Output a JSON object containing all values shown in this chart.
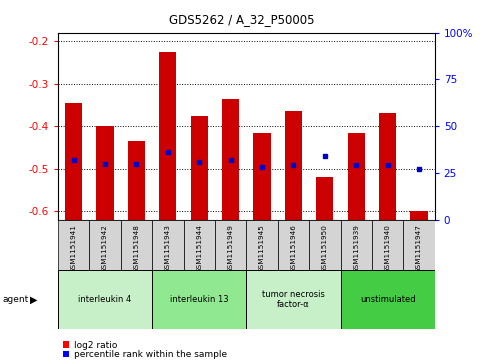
{
  "title": "GDS5262 / A_32_P50005",
  "samples": [
    "GSM1151941",
    "GSM1151942",
    "GSM1151948",
    "GSM1151943",
    "GSM1151944",
    "GSM1151949",
    "GSM1151945",
    "GSM1151946",
    "GSM1151950",
    "GSM1151939",
    "GSM1151940",
    "GSM1151947"
  ],
  "log2_ratios": [
    -0.345,
    -0.4,
    -0.435,
    -0.225,
    -0.375,
    -0.335,
    -0.415,
    -0.365,
    -0.52,
    -0.415,
    -0.37,
    -0.6
  ],
  "percentile_ranks": [
    32,
    30,
    30,
    36,
    31,
    32,
    28,
    29,
    34,
    29,
    29,
    27
  ],
  "groups": [
    {
      "label": "interleukin 4",
      "start": 0,
      "end": 3,
      "color": "#c8f0c8"
    },
    {
      "label": "interleukin 13",
      "start": 3,
      "end": 6,
      "color": "#90e890"
    },
    {
      "label": "tumor necrosis\nfactor-α",
      "start": 6,
      "end": 9,
      "color": "#c8f0c8"
    },
    {
      "label": "unstimulated",
      "start": 9,
      "end": 12,
      "color": "#44cc44"
    }
  ],
  "bar_color": "#cc0000",
  "dot_color": "#0000cc",
  "ylim_left": [
    -0.62,
    -0.18
  ],
  "yticks_left": [
    -0.6,
    -0.5,
    -0.4,
    -0.3,
    -0.2
  ],
  "yticks_right": [
    0,
    25,
    50,
    75,
    100
  ],
  "bar_width": 0.55,
  "fig_width": 4.83,
  "fig_height": 3.63,
  "dpi": 100
}
